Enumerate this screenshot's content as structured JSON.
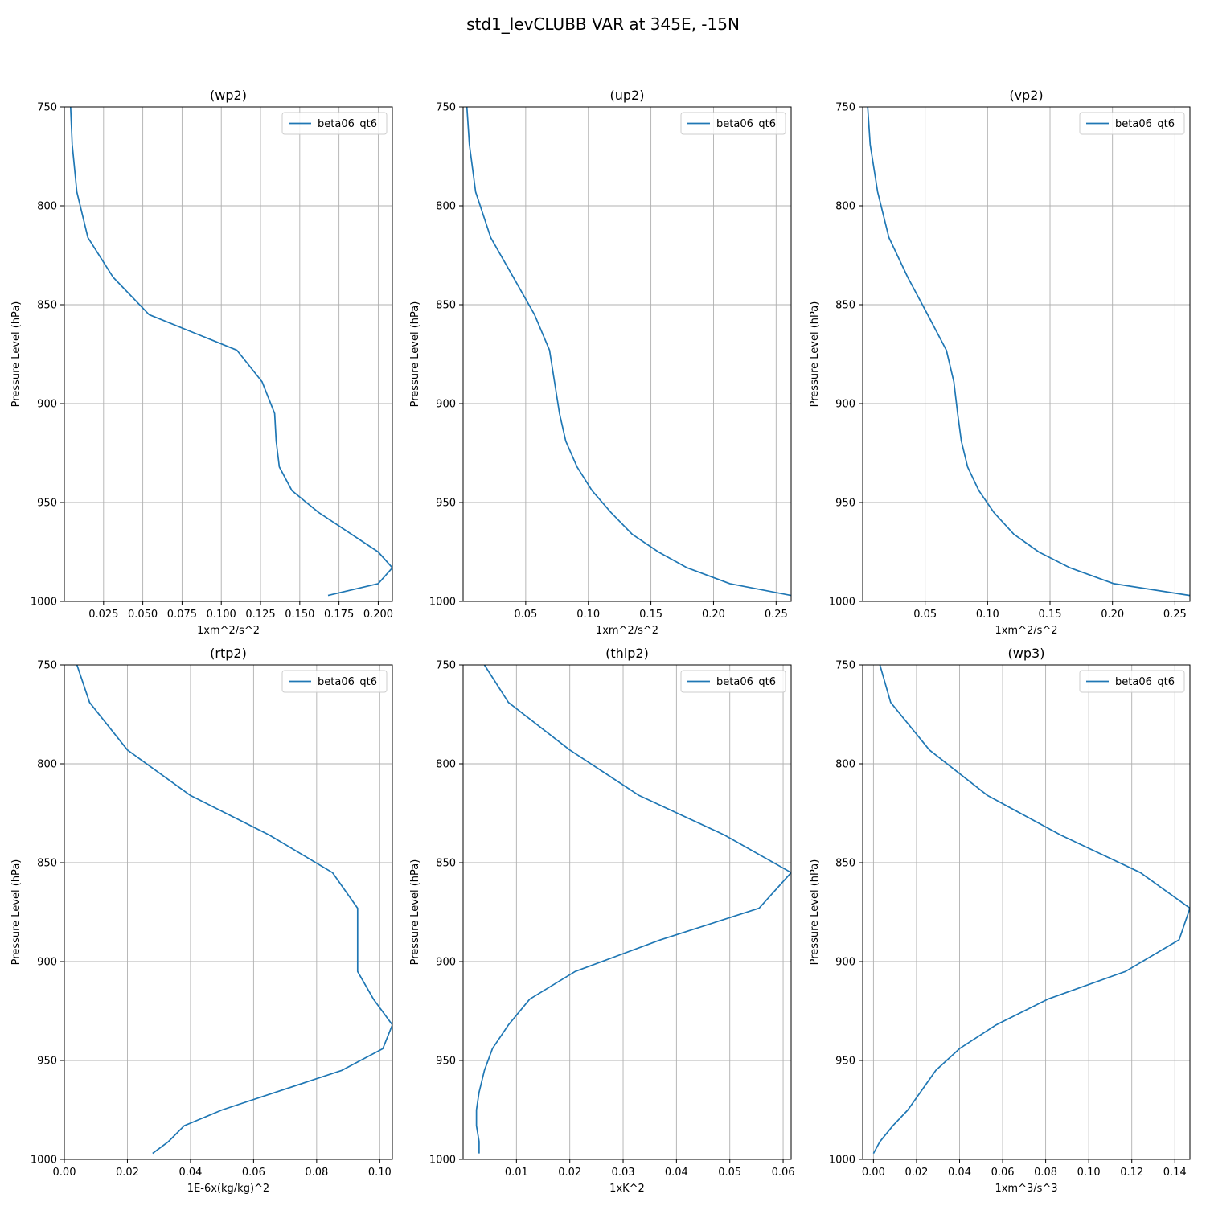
{
  "title": "std1_levCLUBB VAR at 345E, -15N",
  "colors": {
    "series": "#1f77b4",
    "grid": "#b0b0b0",
    "background": "#ffffff"
  },
  "chart_data": [
    {
      "type": "line",
      "title": "(wp2)",
      "xlabel": "1xm^2/s^2",
      "ylabel": "Pressure Level (hPa)",
      "xlim": [
        0.0,
        0.209
      ],
      "ylim": [
        1000,
        750
      ],
      "xticks": [
        "0.025",
        "0.050",
        "0.075",
        "0.100",
        "0.125",
        "0.150",
        "0.175",
        "0.200"
      ],
      "yticks": [
        "750",
        "800",
        "850",
        "900",
        "950",
        "1000"
      ],
      "grid": true,
      "legend": "top-right",
      "series": [
        {
          "name": "beta06_qt6",
          "x": [
            0.004,
            0.005,
            0.008,
            0.015,
            0.031,
            0.054,
            0.11,
            0.126,
            0.134,
            0.135,
            0.137,
            0.145,
            0.162,
            0.2,
            0.209,
            0.2,
            0.168
          ],
          "y": [
            750,
            769,
            793,
            816,
            836,
            855,
            873,
            889,
            905,
            919,
            932,
            944,
            955,
            975,
            983,
            991,
            997
          ]
        }
      ]
    },
    {
      "type": "line",
      "title": "(up2)",
      "xlabel": "1xm^2/s^2",
      "ylabel": "Pressure Level (hPa)",
      "xlim": [
        0.0,
        0.262
      ],
      "ylim": [
        1000,
        750
      ],
      "xticks": [
        "0.05",
        "0.10",
        "0.15",
        "0.20",
        "0.25"
      ],
      "yticks": [
        "750",
        "800",
        "850",
        "900",
        "950",
        "1000"
      ],
      "grid": true,
      "legend": "top-right",
      "series": [
        {
          "name": "beta06_qt6",
          "x": [
            0.003,
            0.005,
            0.01,
            0.022,
            0.04,
            0.057,
            0.069,
            0.073,
            0.077,
            0.082,
            0.091,
            0.103,
            0.118,
            0.135,
            0.156,
            0.179,
            0.213,
            0.262
          ],
          "y": [
            750,
            769,
            793,
            816,
            836,
            855,
            873,
            889,
            905,
            919,
            932,
            944,
            955,
            966,
            975,
            983,
            991,
            997
          ]
        }
      ]
    },
    {
      "type": "line",
      "title": "(vp2)",
      "xlabel": "1xm^2/s^2",
      "ylabel": "Pressure Level (hPa)",
      "xlim": [
        0.0,
        0.262
      ],
      "ylim": [
        1000,
        750
      ],
      "xticks": [
        "0.05",
        "0.10",
        "0.15",
        "0.20",
        "0.25"
      ],
      "yticks": [
        "750",
        "800",
        "850",
        "900",
        "950",
        "1000"
      ],
      "grid": true,
      "legend": "top-right",
      "series": [
        {
          "name": "beta06_qt6",
          "x": [
            0.004,
            0.006,
            0.012,
            0.021,
            0.036,
            0.052,
            0.067,
            0.073,
            0.076,
            0.079,
            0.084,
            0.093,
            0.105,
            0.121,
            0.141,
            0.166,
            0.201,
            0.262
          ],
          "y": [
            750,
            769,
            793,
            816,
            836,
            855,
            873,
            889,
            905,
            919,
            932,
            944,
            955,
            966,
            975,
            983,
            991,
            997
          ]
        }
      ]
    },
    {
      "type": "line",
      "title": "(rtp2)",
      "xlabel": "1E-6x(kg/kg)^2",
      "ylabel": "Pressure Level (hPa)",
      "xlim": [
        0.0,
        0.104
      ],
      "ylim": [
        1000,
        750
      ],
      "xticks": [
        "0.00",
        "0.02",
        "0.04",
        "0.06",
        "0.08",
        "0.10"
      ],
      "yticks": [
        "750",
        "800",
        "850",
        "900",
        "950",
        "1000"
      ],
      "grid": true,
      "legend": "top-right",
      "series": [
        {
          "name": "beta06_qt6",
          "x": [
            0.004,
            0.008,
            0.02,
            0.04,
            0.065,
            0.085,
            0.093,
            0.093,
            0.093,
            0.098,
            0.104,
            0.101,
            0.088,
            0.05,
            0.038,
            0.033,
            0.028
          ],
          "y": [
            750,
            769,
            793,
            816,
            836,
            855,
            873,
            889,
            905,
            919,
            932,
            944,
            955,
            975,
            983,
            991,
            997
          ]
        }
      ]
    },
    {
      "type": "line",
      "title": "(thlp2)",
      "xlabel": "1xK^2",
      "ylabel": "Pressure Level (hPa)",
      "xlim": [
        0.0,
        0.0615
      ],
      "ylim": [
        1000,
        750
      ],
      "xticks": [
        "0.01",
        "0.02",
        "0.03",
        "0.04",
        "0.05",
        "0.06"
      ],
      "yticks": [
        "750",
        "800",
        "850",
        "900",
        "950",
        "1000"
      ],
      "grid": true,
      "legend": "top-right",
      "series": [
        {
          "name": "beta06_qt6",
          "x": [
            0.004,
            0.0085,
            0.02,
            0.033,
            0.049,
            0.0615,
            0.0555,
            0.037,
            0.021,
            0.0125,
            0.0085,
            0.0055,
            0.004,
            0.003,
            0.0025,
            0.0025,
            0.003,
            0.003
          ],
          "y": [
            750,
            769,
            793,
            816,
            836,
            855,
            873,
            889,
            905,
            919,
            932,
            944,
            955,
            966,
            975,
            983,
            991,
            997
          ]
        }
      ]
    },
    {
      "type": "line",
      "title": "(wp3)",
      "xlabel": "1xm^3/s^3",
      "ylabel": "Pressure Level (hPa)",
      "xlim": [
        -0.005,
        0.147
      ],
      "ylim": [
        1000,
        750
      ],
      "xticks": [
        "0.00",
        "0.02",
        "0.04",
        "0.06",
        "0.08",
        "0.10",
        "0.12",
        "0.14"
      ],
      "yticks": [
        "750",
        "800",
        "850",
        "900",
        "950",
        "1000"
      ],
      "grid": true,
      "legend": "top-right",
      "series": [
        {
          "name": "beta06_qt6",
          "x": [
            0.003,
            0.008,
            0.026,
            0.053,
            0.087,
            0.124,
            0.147,
            0.142,
            0.117,
            0.081,
            0.057,
            0.04,
            0.029,
            0.016,
            0.009,
            0.003,
            0.0
          ],
          "y": [
            750,
            769,
            793,
            816,
            836,
            855,
            873,
            889,
            905,
            919,
            932,
            944,
            955,
            975,
            983,
            991,
            997
          ]
        }
      ]
    }
  ]
}
